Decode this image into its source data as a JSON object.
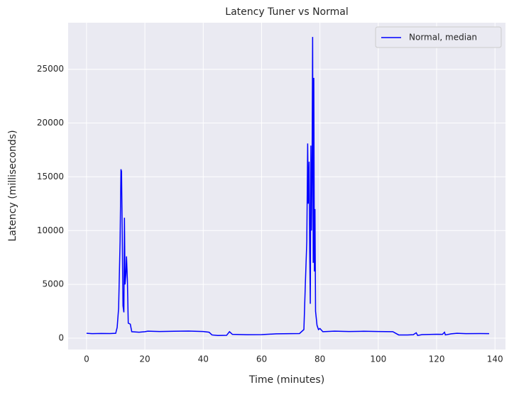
{
  "chart_data": {
    "type": "line",
    "title": "Latency Tuner vs Normal",
    "xlabel": "Time (minutes)",
    "ylabel": "Latency (milliseconds)",
    "x": [
      0,
      2,
      5,
      8,
      10,
      10.5,
      11,
      11.5,
      11.8,
      12,
      12.3,
      12.5,
      12.8,
      13,
      13.2,
      13.5,
      13.7,
      14,
      14.3,
      15,
      15.5,
      18,
      20,
      21,
      25,
      30,
      35,
      40,
      42,
      43,
      45,
      48,
      49,
      50,
      55,
      60,
      65,
      70,
      73,
      74.5,
      75,
      75.5,
      75.8,
      76,
      76.3,
      76.5,
      76.7,
      76.9,
      77.1,
      77.3,
      77.5,
      77.7,
      77.9,
      78.1,
      78.3,
      78.5,
      79,
      79.5,
      80,
      81,
      85,
      90,
      95,
      100,
      105,
      106,
      107,
      110,
      112,
      113,
      113.5,
      115,
      120,
      122,
      122.7,
      123,
      125,
      127,
      130,
      135,
      138
    ],
    "series": [
      {
        "name": "Normal, median",
        "color": "#0000ff",
        "values": [
          450,
          420,
          440,
          430,
          450,
          1000,
          2800,
          9000,
          15700,
          15500,
          8000,
          3000,
          2400,
          11200,
          5000,
          6000,
          7600,
          5500,
          1400,
          1300,
          600,
          550,
          600,
          650,
          620,
          640,
          660,
          620,
          550,
          300,
          250,
          260,
          600,
          350,
          320,
          330,
          400,
          420,
          430,
          800,
          5000,
          9000,
          18100,
          12500,
          16400,
          8000,
          3200,
          17900,
          10000,
          16000,
          28000,
          7000,
          24200,
          6200,
          12000,
          2500,
          1200,
          800,
          900,
          600,
          650,
          620,
          640,
          620,
          600,
          450,
          300,
          300,
          320,
          500,
          250,
          330,
          360,
          350,
          550,
          300,
          400,
          450,
          420,
          430,
          420
        ]
      }
    ],
    "xlim": [
      -6.3,
      143.6
    ],
    "ylim": [
      -1055,
      29330
    ],
    "xticks": [
      0,
      20,
      40,
      60,
      80,
      100,
      120,
      140
    ],
    "yticks": [
      0,
      5000,
      10000,
      15000,
      20000,
      25000
    ],
    "grid": true,
    "legend": "upper right"
  }
}
